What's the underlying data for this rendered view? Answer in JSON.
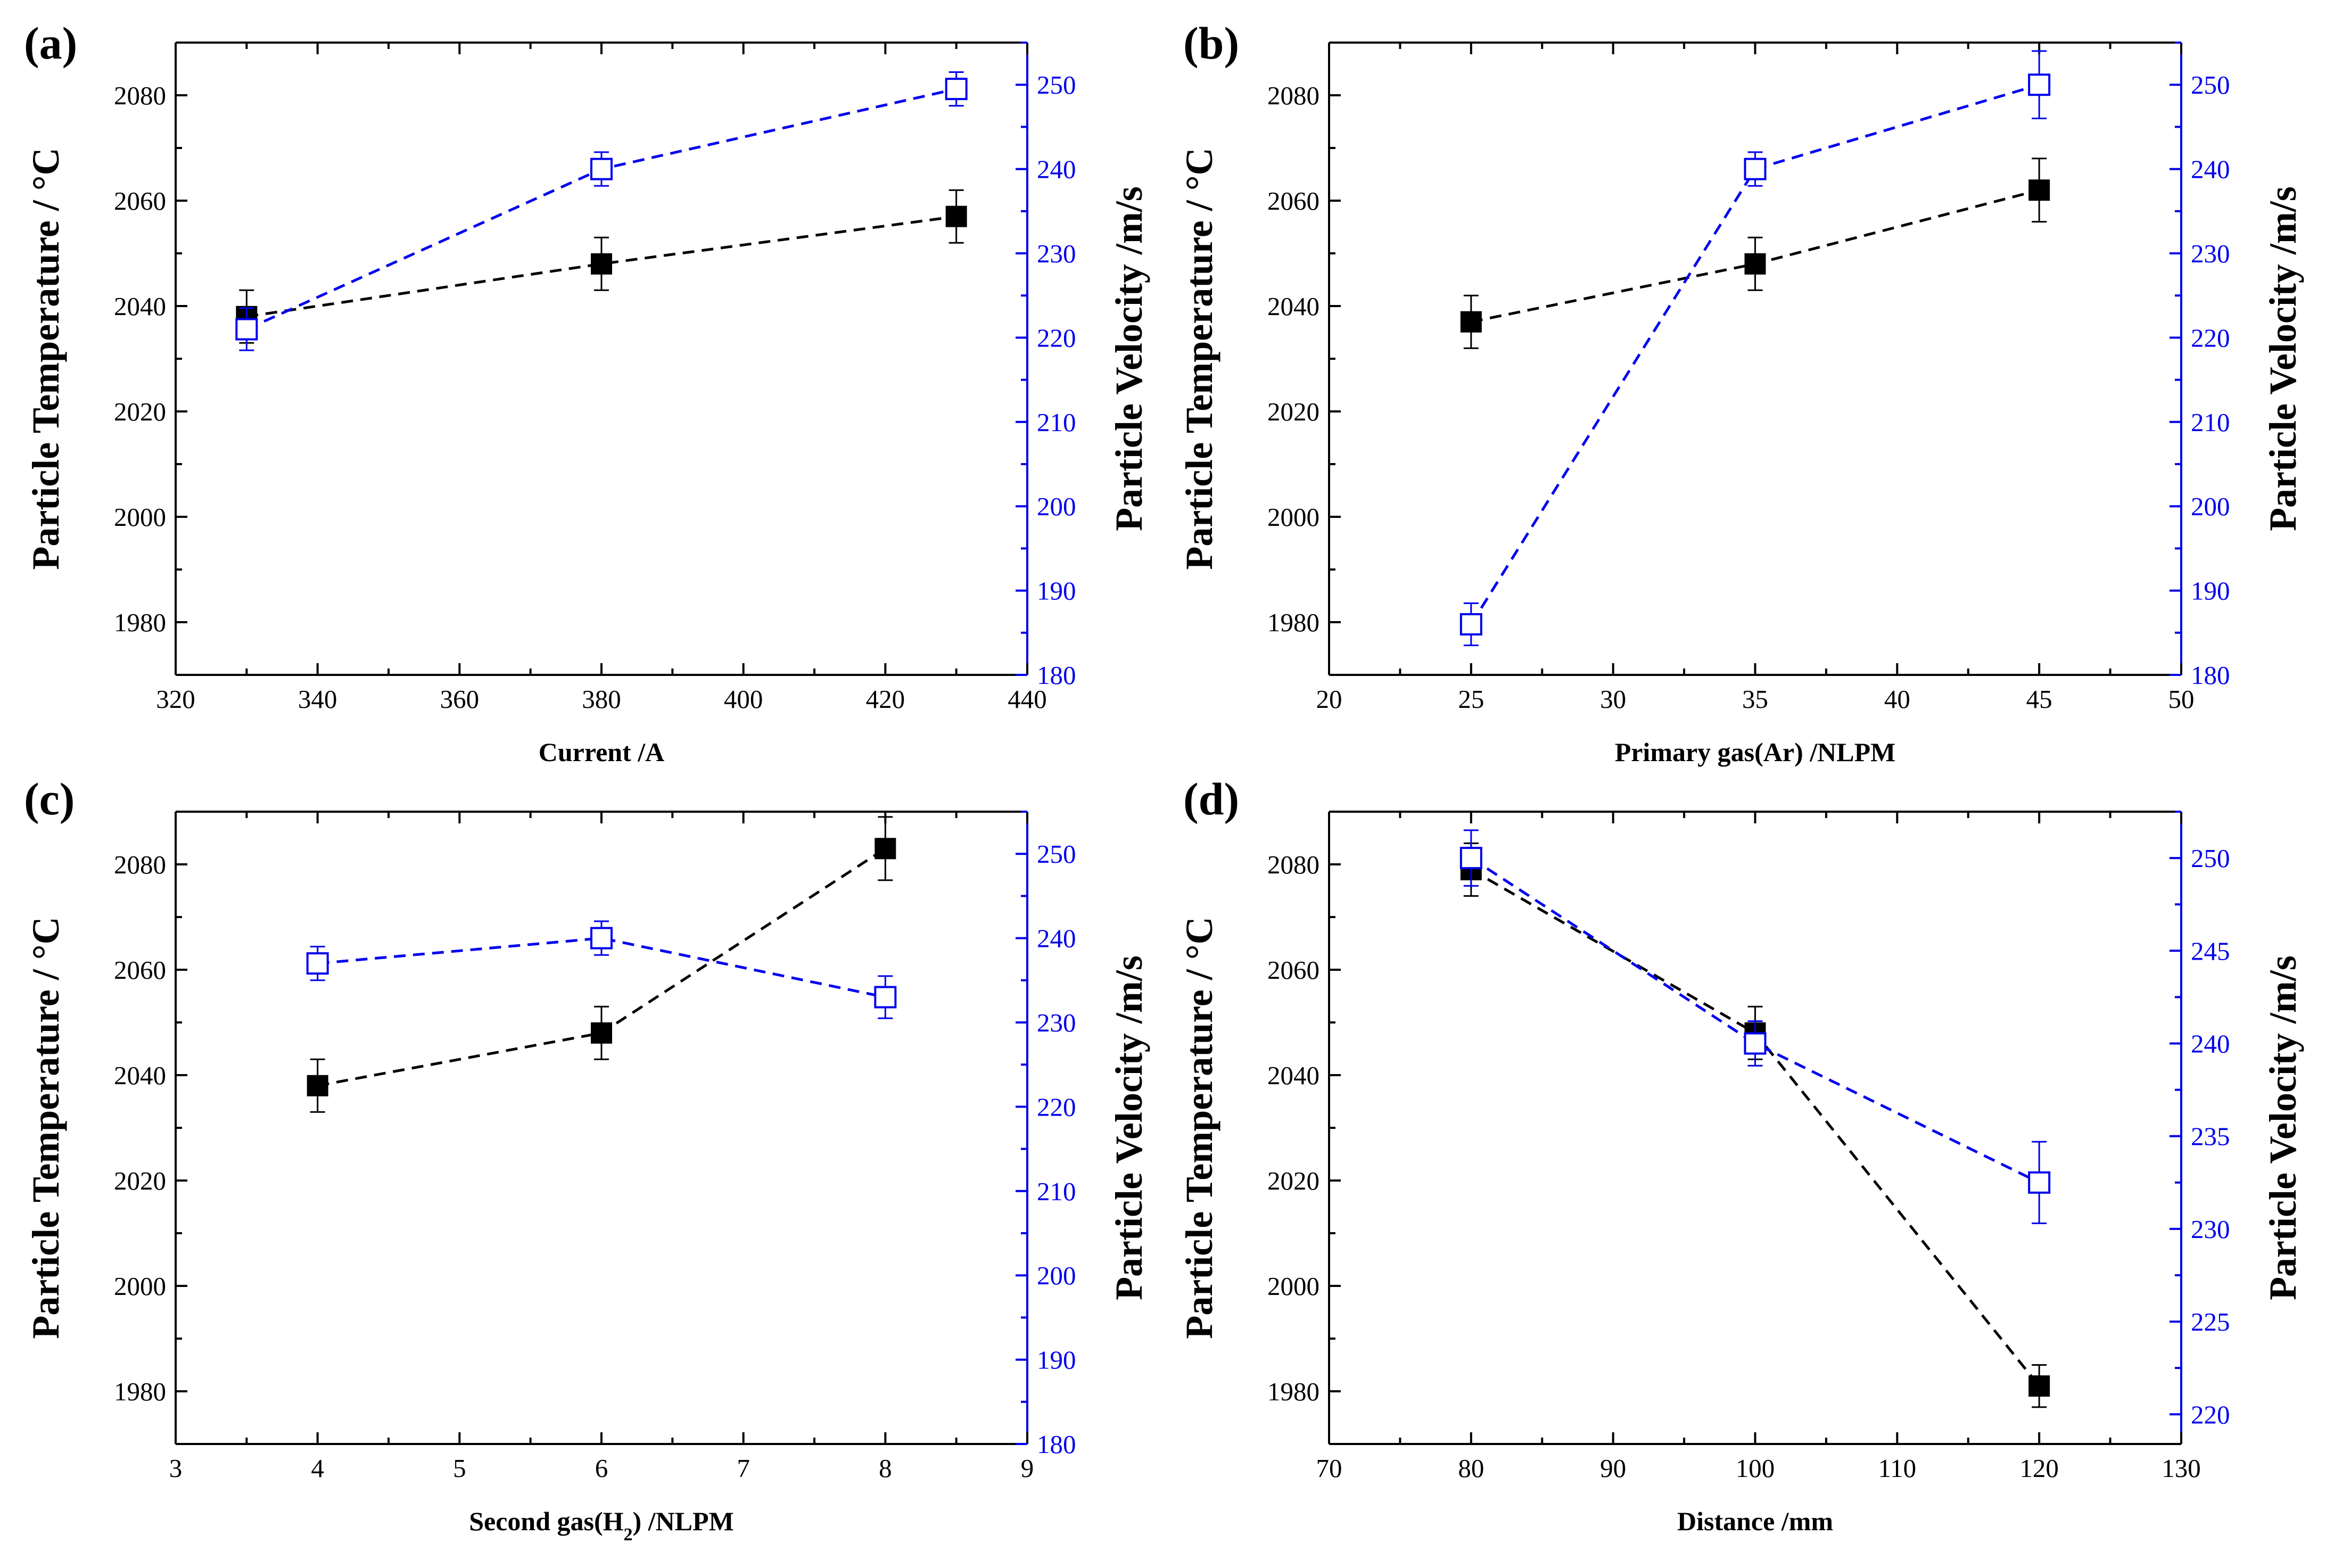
{
  "colors": {
    "left": "#000000",
    "right": "#0000ee"
  },
  "chart_data": [
    {
      "type": "line",
      "panel": "(a)",
      "xlabel": "Current  /A",
      "ylabel_left": "Particle Temperature  / °C",
      "ylabel_right": "Particle Velocity  /m/s",
      "xlim": [
        320,
        440
      ],
      "xticks": [
        320,
        340,
        360,
        380,
        400,
        420,
        440
      ],
      "ylim_left": [
        1970,
        2090
      ],
      "yticks_left": [
        1980,
        2000,
        2020,
        2040,
        2060,
        2080
      ],
      "ylim_right": [
        180,
        255
      ],
      "yticks_right": [
        180,
        190,
        200,
        210,
        220,
        230,
        240,
        250
      ],
      "x": [
        330,
        380,
        430
      ],
      "series": [
        {
          "axis": "left",
          "marker": "filled-square",
          "y": [
            2038,
            2048,
            2057
          ],
          "err": [
            5,
            5,
            5
          ]
        },
        {
          "axis": "right",
          "marker": "open-square",
          "y": [
            221,
            240,
            249.5
          ],
          "err": [
            2.5,
            2,
            2
          ]
        }
      ]
    },
    {
      "type": "line",
      "panel": "(b)",
      "xlabel": "Primary gas(Ar)  /NLPM",
      "ylabel_left": "Particle Temperature  / °C",
      "ylabel_right": "Particle Velocity  /m/s",
      "xlim": [
        20,
        50
      ],
      "xticks": [
        20,
        25,
        30,
        35,
        40,
        45,
        50
      ],
      "ylim_left": [
        1970,
        2090
      ],
      "yticks_left": [
        1980,
        2000,
        2020,
        2040,
        2060,
        2080
      ],
      "ylim_right": [
        180,
        255
      ],
      "yticks_right": [
        180,
        190,
        200,
        210,
        220,
        230,
        240,
        250
      ],
      "x": [
        25,
        35,
        45
      ],
      "series": [
        {
          "axis": "left",
          "marker": "filled-square",
          "y": [
            2037,
            2048,
            2062
          ],
          "err": [
            5,
            5,
            6
          ]
        },
        {
          "axis": "right",
          "marker": "open-square",
          "y": [
            186,
            240,
            250
          ],
          "err": [
            2.5,
            2,
            4
          ]
        }
      ]
    },
    {
      "type": "line",
      "panel": "(c)",
      "xlabel": "Second gas(H",
      "xlabel_sub": "2",
      "xlabel_tail": ")  /NLPM",
      "ylabel_left": "Particle Temperature  / °C",
      "ylabel_right": "Particle Velocity  /m/s",
      "xlim": [
        3,
        9
      ],
      "xticks": [
        3,
        4,
        5,
        6,
        7,
        8,
        9
      ],
      "ylim_left": [
        1970,
        2090
      ],
      "yticks_left": [
        1980,
        2000,
        2020,
        2040,
        2060,
        2080
      ],
      "ylim_right": [
        180,
        255
      ],
      "yticks_right": [
        180,
        190,
        200,
        210,
        220,
        230,
        240,
        250
      ],
      "x": [
        4,
        6,
        8
      ],
      "series": [
        {
          "axis": "left",
          "marker": "filled-square",
          "y": [
            2038,
            2048,
            2083
          ],
          "err": [
            5,
            5,
            6
          ]
        },
        {
          "axis": "right",
          "marker": "open-square",
          "y": [
            237,
            240,
            233
          ],
          "err": [
            2,
            2,
            2.5
          ]
        }
      ]
    },
    {
      "type": "line",
      "panel": "(d)",
      "xlabel": "Distance  /mm",
      "ylabel_left": "Particle Temperature  / °C",
      "ylabel_right": "Particle Velocity  /m/s",
      "xlim": [
        70,
        130
      ],
      "xticks": [
        70,
        80,
        90,
        100,
        110,
        120,
        130
      ],
      "ylim_left": [
        1970,
        2090
      ],
      "yticks_left": [
        1980,
        2000,
        2020,
        2040,
        2060,
        2080
      ],
      "ylim_right": [
        218.4,
        252.5
      ],
      "yticks_right": [
        220,
        225,
        230,
        235,
        240,
        245,
        250
      ],
      "x": [
        80,
        100,
        120
      ],
      "series": [
        {
          "axis": "left",
          "marker": "filled-square",
          "y": [
            2079,
            2048,
            1981
          ],
          "err": [
            5,
            5,
            4
          ]
        },
        {
          "axis": "right",
          "marker": "open-square",
          "y": [
            250,
            240,
            232.5
          ],
          "err": [
            1.5,
            1.2,
            2.2
          ]
        }
      ]
    }
  ]
}
